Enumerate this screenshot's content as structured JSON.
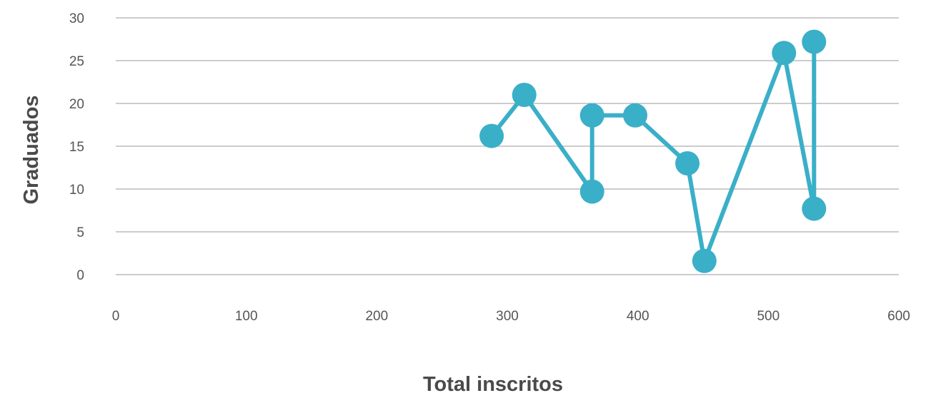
{
  "chart_data": {
    "type": "line",
    "title": "",
    "xlabel": "Total inscritos",
    "ylabel": "Graduados",
    "xlim": [
      0,
      600
    ],
    "ylim": [
      0,
      30
    ],
    "x_ticks": [
      "0",
      "100",
      "200",
      "300",
      "400",
      "500",
      "600"
    ],
    "y_ticks": [
      "0",
      "5",
      "10",
      "15",
      "20",
      "25",
      "30"
    ],
    "grid": "horizontal",
    "legend": "none",
    "series": [
      {
        "color": "#3aafc8",
        "marker": "circle",
        "points": [
          {
            "x": 288,
            "y": 16.2
          },
          {
            "x": 313,
            "y": 21.0
          },
          {
            "x": 365,
            "y": 9.7
          },
          {
            "x": 365,
            "y": 18.6
          },
          {
            "x": 398,
            "y": 18.6
          },
          {
            "x": 438,
            "y": 13.0
          },
          {
            "x": 451,
            "y": 1.6
          },
          {
            "x": 512,
            "y": 25.9
          },
          {
            "x": 535,
            "y": 7.7
          },
          {
            "x": 535,
            "y": 27.2
          }
        ]
      }
    ]
  }
}
